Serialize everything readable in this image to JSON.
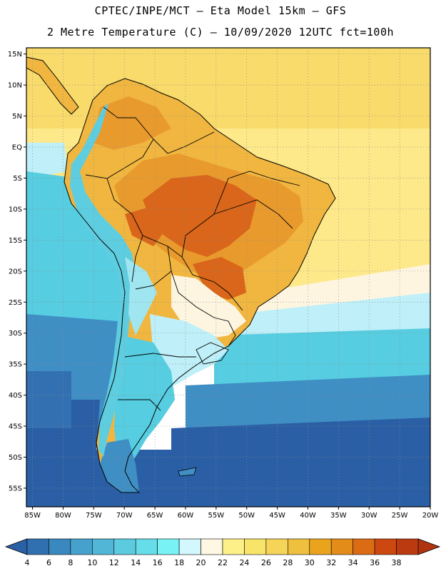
{
  "header": {
    "line1": "CPTEC/INPE/MCT —  Eta Model 15km — GFS",
    "line2": "2 Metre Temperature (C) — 10/09/2020 12UTC fct=100h"
  },
  "map": {
    "lat_labels": [
      "15N",
      "10N",
      "5N",
      "EQ",
      "5S",
      "10S",
      "15S",
      "20S",
      "25S",
      "30S",
      "35S",
      "40S",
      "45S",
      "50S",
      "55S"
    ],
    "lon_labels": [
      "85W",
      "80W",
      "75W",
      "70W",
      "65W",
      "60W",
      "55W",
      "50W",
      "45W",
      "40W",
      "35W",
      "30W",
      "25W",
      "20W"
    ],
    "lat_values": [
      15,
      10,
      5,
      0,
      -5,
      -10,
      -15,
      -20,
      -25,
      -30,
      -35,
      -40,
      -45,
      -50,
      -55
    ],
    "lon_values": [
      -85,
      -80,
      -75,
      -70,
      -65,
      -60,
      -55,
      -50,
      -45,
      -40,
      -35,
      -30,
      -25,
      -20
    ],
    "lat_range": [
      -58,
      16
    ],
    "lon_range": [
      -86,
      -20
    ]
  },
  "colorbar": {
    "labels": [
      "4",
      "6",
      "8",
      "10",
      "12",
      "14",
      "16",
      "18",
      "20",
      "22",
      "24",
      "26",
      "28",
      "30",
      "32",
      "34",
      "36",
      "38"
    ],
    "colors": [
      "#3070b0",
      "#3a88c0",
      "#46a2cc",
      "#52b6d6",
      "#5ccadf",
      "#66dde8",
      "#78f2f4",
      "#d2f7fc",
      "#fdf7e4",
      "#fdf088",
      "#f9e46a",
      "#f5d458",
      "#efbf3e",
      "#e9a31c",
      "#e38c1a",
      "#dc6c14",
      "#cc4810",
      "#bc3a10"
    ],
    "under_color": "#2b60a6",
    "over_color": "#b03410"
  },
  "colors": {
    "ocean_deep": "#2b5fa5",
    "ocean_mid": "#3f8fc5",
    "ocean_cyan": "#56cde0",
    "ocean_light": "#bfeff8",
    "ocean_cream": "#fdf5e0",
    "ocean_yellow": "#fde98a",
    "ocean_warm": "#f8db6b",
    "land_hot": "#d9661a",
    "land_warm": "#e99a2d",
    "land_mid": "#f0b640",
    "andes": "#5ecde0"
  }
}
